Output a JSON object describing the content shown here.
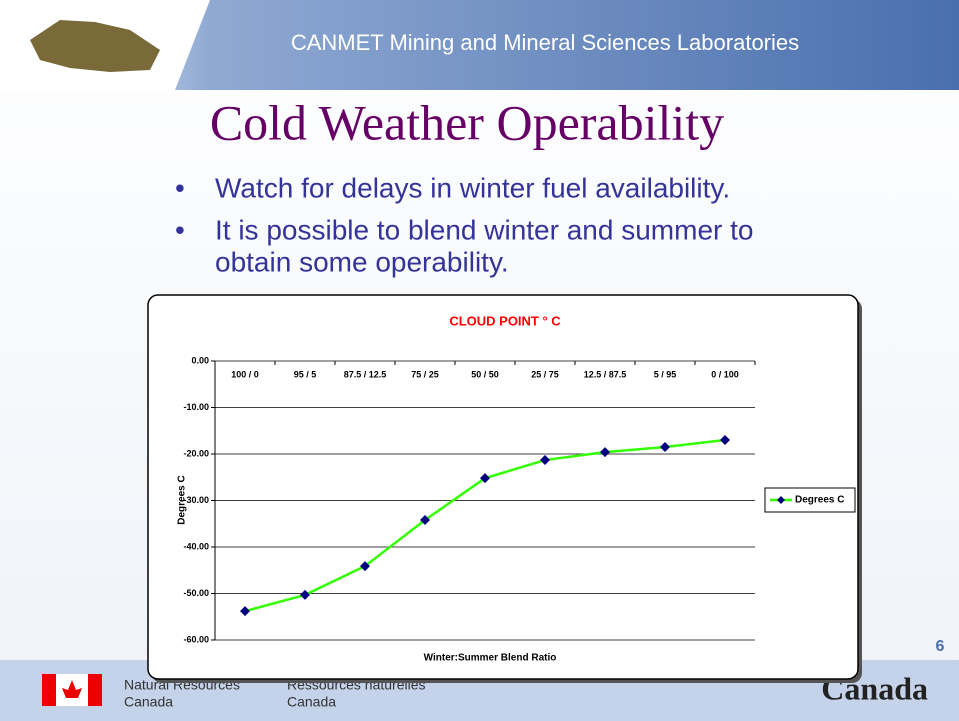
{
  "header": {
    "title": "CANMET Mining and Mineral Sciences Laboratories"
  },
  "slide": {
    "title": "Cold Weather Operability",
    "bullets": [
      "Watch for delays in winter fuel availability.",
      "It is possible to blend winter and summer to",
      "obtain some operability."
    ],
    "page_number": "6"
  },
  "footer": {
    "english": [
      "Natural Resources",
      "Canada"
    ],
    "french": [
      "Ressources naturelles",
      "Canada"
    ],
    "wordmark": "Canada"
  },
  "chart_data": {
    "type": "line",
    "title": "CLOUD POINT ° C",
    "x_label": "Winter:Summer Blend Ratio",
    "y_label": "Degrees C",
    "categories": [
      "100 / 0",
      "95 / 5",
      "87.5 / 12.5",
      "75 / 25",
      "50 / 50",
      "25 / 75",
      "12.5 / 87.5",
      "5 / 95",
      "0 / 100"
    ],
    "series": [
      {
        "name": "Degrees C",
        "color": "#33ff00",
        "marker_color": "#000080",
        "values": [
          -53.8,
          -50.3,
          -44.1,
          -34.2,
          -25.2,
          -21.3,
          -19.6,
          -18.5,
          -17.0
        ]
      }
    ],
    "ylim": [
      -60,
      0
    ],
    "yticks": [
      {
        "value": 0,
        "label": "0.00"
      },
      {
        "value": -10,
        "label": "-10.00"
      },
      {
        "value": -20,
        "label": "-20.00"
      },
      {
        "value": -30,
        "label": "-30.00"
      },
      {
        "value": -40,
        "label": "-40.00"
      },
      {
        "value": -50,
        "label": "-50.00"
      },
      {
        "value": -60,
        "label": "-60.00"
      }
    ],
    "grid": true,
    "legend": "right"
  }
}
